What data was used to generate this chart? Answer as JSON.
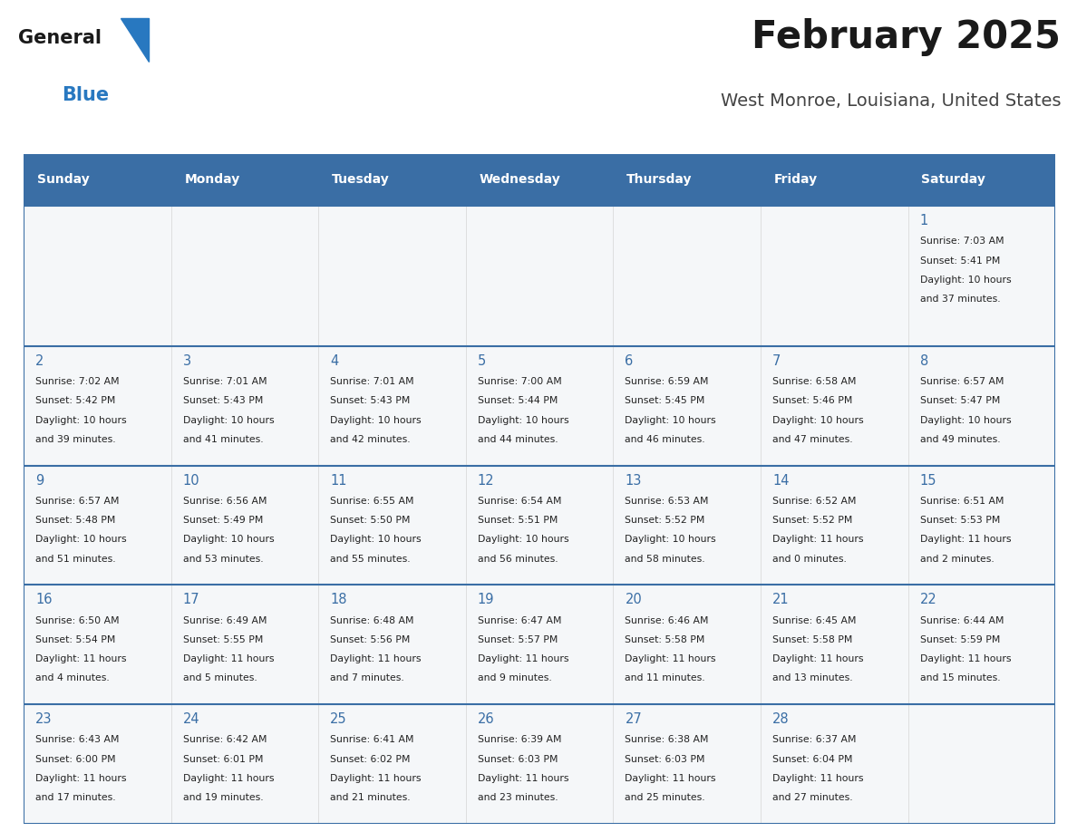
{
  "title": "February 2025",
  "subtitle": "West Monroe, Louisiana, United States",
  "header_bg": "#3a6ea5",
  "header_text_color": "#ffffff",
  "cell_bg": "#f5f7f9",
  "day_headers": [
    "Sunday",
    "Monday",
    "Tuesday",
    "Wednesday",
    "Thursday",
    "Friday",
    "Saturday"
  ],
  "title_color": "#1a1a1a",
  "subtitle_color": "#444444",
  "day_number_color": "#3a6ea5",
  "info_color": "#222222",
  "divider_color": "#3a6ea5",
  "logo_general_color": "#1a1a1a",
  "logo_blue_color": "#2878c0",
  "logo_triangle_color": "#2878c0",
  "calendar": [
    [
      null,
      null,
      null,
      null,
      null,
      null,
      {
        "day": 1,
        "sunrise": "7:03 AM",
        "sunset": "5:41 PM",
        "daylight": "10 hours and 37 minutes."
      }
    ],
    [
      {
        "day": 2,
        "sunrise": "7:02 AM",
        "sunset": "5:42 PM",
        "daylight": "10 hours and 39 minutes."
      },
      {
        "day": 3,
        "sunrise": "7:01 AM",
        "sunset": "5:43 PM",
        "daylight": "10 hours and 41 minutes."
      },
      {
        "day": 4,
        "sunrise": "7:01 AM",
        "sunset": "5:43 PM",
        "daylight": "10 hours and 42 minutes."
      },
      {
        "day": 5,
        "sunrise": "7:00 AM",
        "sunset": "5:44 PM",
        "daylight": "10 hours and 44 minutes."
      },
      {
        "day": 6,
        "sunrise": "6:59 AM",
        "sunset": "5:45 PM",
        "daylight": "10 hours and 46 minutes."
      },
      {
        "day": 7,
        "sunrise": "6:58 AM",
        "sunset": "5:46 PM",
        "daylight": "10 hours and 47 minutes."
      },
      {
        "day": 8,
        "sunrise": "6:57 AM",
        "sunset": "5:47 PM",
        "daylight": "10 hours and 49 minutes."
      }
    ],
    [
      {
        "day": 9,
        "sunrise": "6:57 AM",
        "sunset": "5:48 PM",
        "daylight": "10 hours and 51 minutes."
      },
      {
        "day": 10,
        "sunrise": "6:56 AM",
        "sunset": "5:49 PM",
        "daylight": "10 hours and 53 minutes."
      },
      {
        "day": 11,
        "sunrise": "6:55 AM",
        "sunset": "5:50 PM",
        "daylight": "10 hours and 55 minutes."
      },
      {
        "day": 12,
        "sunrise": "6:54 AM",
        "sunset": "5:51 PM",
        "daylight": "10 hours and 56 minutes."
      },
      {
        "day": 13,
        "sunrise": "6:53 AM",
        "sunset": "5:52 PM",
        "daylight": "10 hours and 58 minutes."
      },
      {
        "day": 14,
        "sunrise": "6:52 AM",
        "sunset": "5:52 PM",
        "daylight": "11 hours and 0 minutes."
      },
      {
        "day": 15,
        "sunrise": "6:51 AM",
        "sunset": "5:53 PM",
        "daylight": "11 hours and 2 minutes."
      }
    ],
    [
      {
        "day": 16,
        "sunrise": "6:50 AM",
        "sunset": "5:54 PM",
        "daylight": "11 hours and 4 minutes."
      },
      {
        "day": 17,
        "sunrise": "6:49 AM",
        "sunset": "5:55 PM",
        "daylight": "11 hours and 5 minutes."
      },
      {
        "day": 18,
        "sunrise": "6:48 AM",
        "sunset": "5:56 PM",
        "daylight": "11 hours and 7 minutes."
      },
      {
        "day": 19,
        "sunrise": "6:47 AM",
        "sunset": "5:57 PM",
        "daylight": "11 hours and 9 minutes."
      },
      {
        "day": 20,
        "sunrise": "6:46 AM",
        "sunset": "5:58 PM",
        "daylight": "11 hours and 11 minutes."
      },
      {
        "day": 21,
        "sunrise": "6:45 AM",
        "sunset": "5:58 PM",
        "daylight": "11 hours and 13 minutes."
      },
      {
        "day": 22,
        "sunrise": "6:44 AM",
        "sunset": "5:59 PM",
        "daylight": "11 hours and 15 minutes."
      }
    ],
    [
      {
        "day": 23,
        "sunrise": "6:43 AM",
        "sunset": "6:00 PM",
        "daylight": "11 hours and 17 minutes."
      },
      {
        "day": 24,
        "sunrise": "6:42 AM",
        "sunset": "6:01 PM",
        "daylight": "11 hours and 19 minutes."
      },
      {
        "day": 25,
        "sunrise": "6:41 AM",
        "sunset": "6:02 PM",
        "daylight": "11 hours and 21 minutes."
      },
      {
        "day": 26,
        "sunrise": "6:39 AM",
        "sunset": "6:03 PM",
        "daylight": "11 hours and 23 minutes."
      },
      {
        "day": 27,
        "sunrise": "6:38 AM",
        "sunset": "6:03 PM",
        "daylight": "11 hours and 25 minutes."
      },
      {
        "day": 28,
        "sunrise": "6:37 AM",
        "sunset": "6:04 PM",
        "daylight": "11 hours and 27 minutes."
      },
      null
    ]
  ]
}
